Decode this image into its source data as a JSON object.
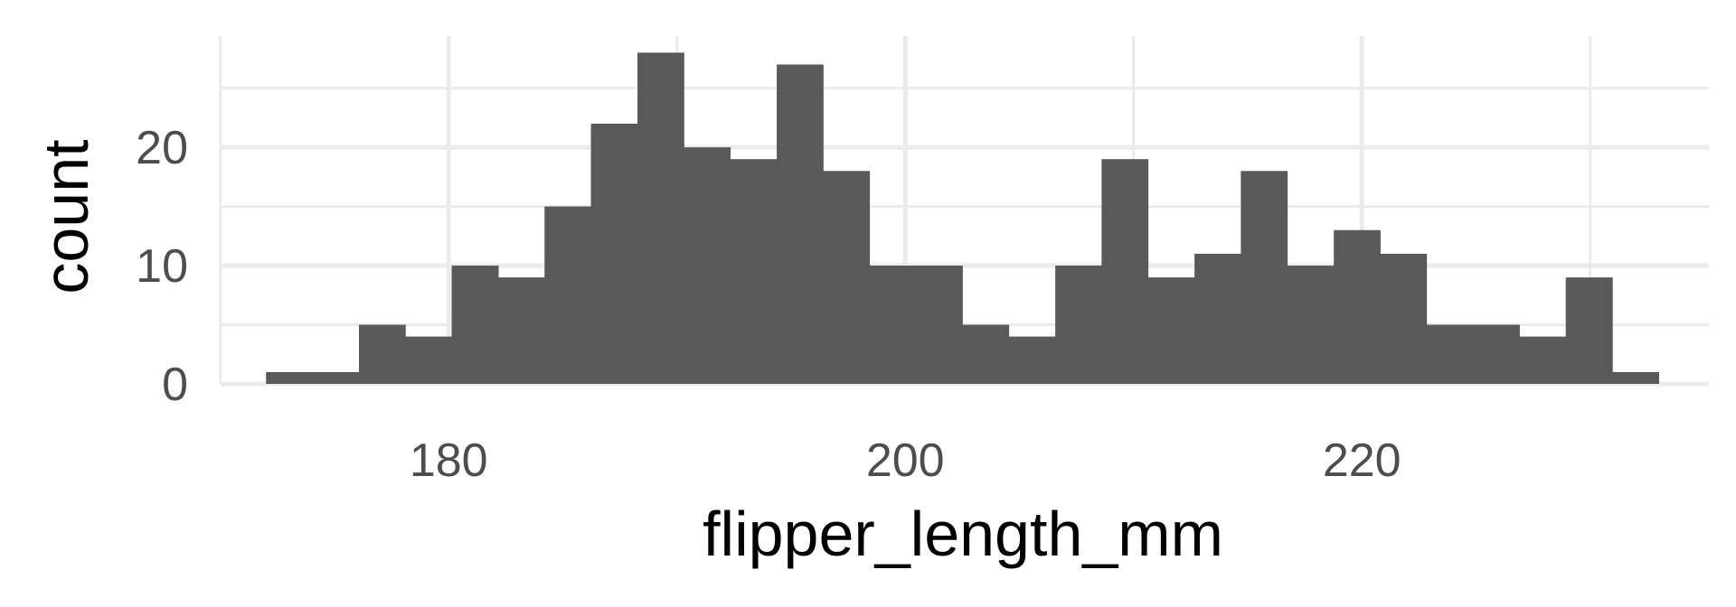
{
  "chart_data": {
    "type": "histogram",
    "xlabel": "flipper_length_mm",
    "ylabel": "count",
    "xlim": [
      170.05,
      235.2
    ],
    "ylim": [
      0,
      29.4
    ],
    "bin_width": 2.03,
    "bins": [
      {
        "x0": 172.0,
        "x1": 174.03,
        "count": 1
      },
      {
        "x0": 174.03,
        "x1": 176.07,
        "count": 1
      },
      {
        "x0": 176.07,
        "x1": 178.1,
        "count": 5
      },
      {
        "x0": 178.1,
        "x1": 180.13,
        "count": 4
      },
      {
        "x0": 180.13,
        "x1": 182.17,
        "count": 10
      },
      {
        "x0": 182.17,
        "x1": 184.2,
        "count": 9
      },
      {
        "x0": 184.2,
        "x1": 186.23,
        "count": 15
      },
      {
        "x0": 186.23,
        "x1": 188.27,
        "count": 22
      },
      {
        "x0": 188.27,
        "x1": 190.3,
        "count": 28
      },
      {
        "x0": 190.3,
        "x1": 192.33,
        "count": 20
      },
      {
        "x0": 192.33,
        "x1": 194.37,
        "count": 19
      },
      {
        "x0": 194.37,
        "x1": 196.4,
        "count": 27
      },
      {
        "x0": 196.4,
        "x1": 198.43,
        "count": 18
      },
      {
        "x0": 198.43,
        "x1": 200.47,
        "count": 10
      },
      {
        "x0": 200.47,
        "x1": 202.5,
        "count": 10
      },
      {
        "x0": 202.5,
        "x1": 204.53,
        "count": 5
      },
      {
        "x0": 204.53,
        "x1": 206.57,
        "count": 4
      },
      {
        "x0": 206.57,
        "x1": 208.6,
        "count": 10
      },
      {
        "x0": 208.6,
        "x1": 210.63,
        "count": 19
      },
      {
        "x0": 210.63,
        "x1": 212.67,
        "count": 9
      },
      {
        "x0": 212.67,
        "x1": 214.7,
        "count": 11
      },
      {
        "x0": 214.7,
        "x1": 216.73,
        "count": 18
      },
      {
        "x0": 216.73,
        "x1": 218.77,
        "count": 10
      },
      {
        "x0": 218.77,
        "x1": 220.8,
        "count": 13
      },
      {
        "x0": 220.8,
        "x1": 222.83,
        "count": 11
      },
      {
        "x0": 222.83,
        "x1": 224.87,
        "count": 5
      },
      {
        "x0": 224.87,
        "x1": 226.9,
        "count": 5
      },
      {
        "x0": 226.9,
        "x1": 228.93,
        "count": 4
      },
      {
        "x0": 228.93,
        "x1": 230.97,
        "count": 9
      },
      {
        "x0": 230.97,
        "x1": 233.0,
        "count": 1
      }
    ],
    "x_major_ticks": [
      180,
      200,
      220
    ],
    "x_major_tick_labels": [
      "180",
      "200",
      "220"
    ],
    "x_minor_ticks": [
      170,
      190,
      210,
      230
    ],
    "y_major_ticks": [
      0,
      10,
      20
    ],
    "y_major_tick_labels": [
      "0",
      "10",
      "20"
    ],
    "y_minor_ticks": [
      5,
      15,
      25
    ],
    "grid": true,
    "theme": "minimal",
    "bar_color": "#595959",
    "grid_color": "#ebebeb",
    "tick_label_color": "#4d4d4d"
  }
}
